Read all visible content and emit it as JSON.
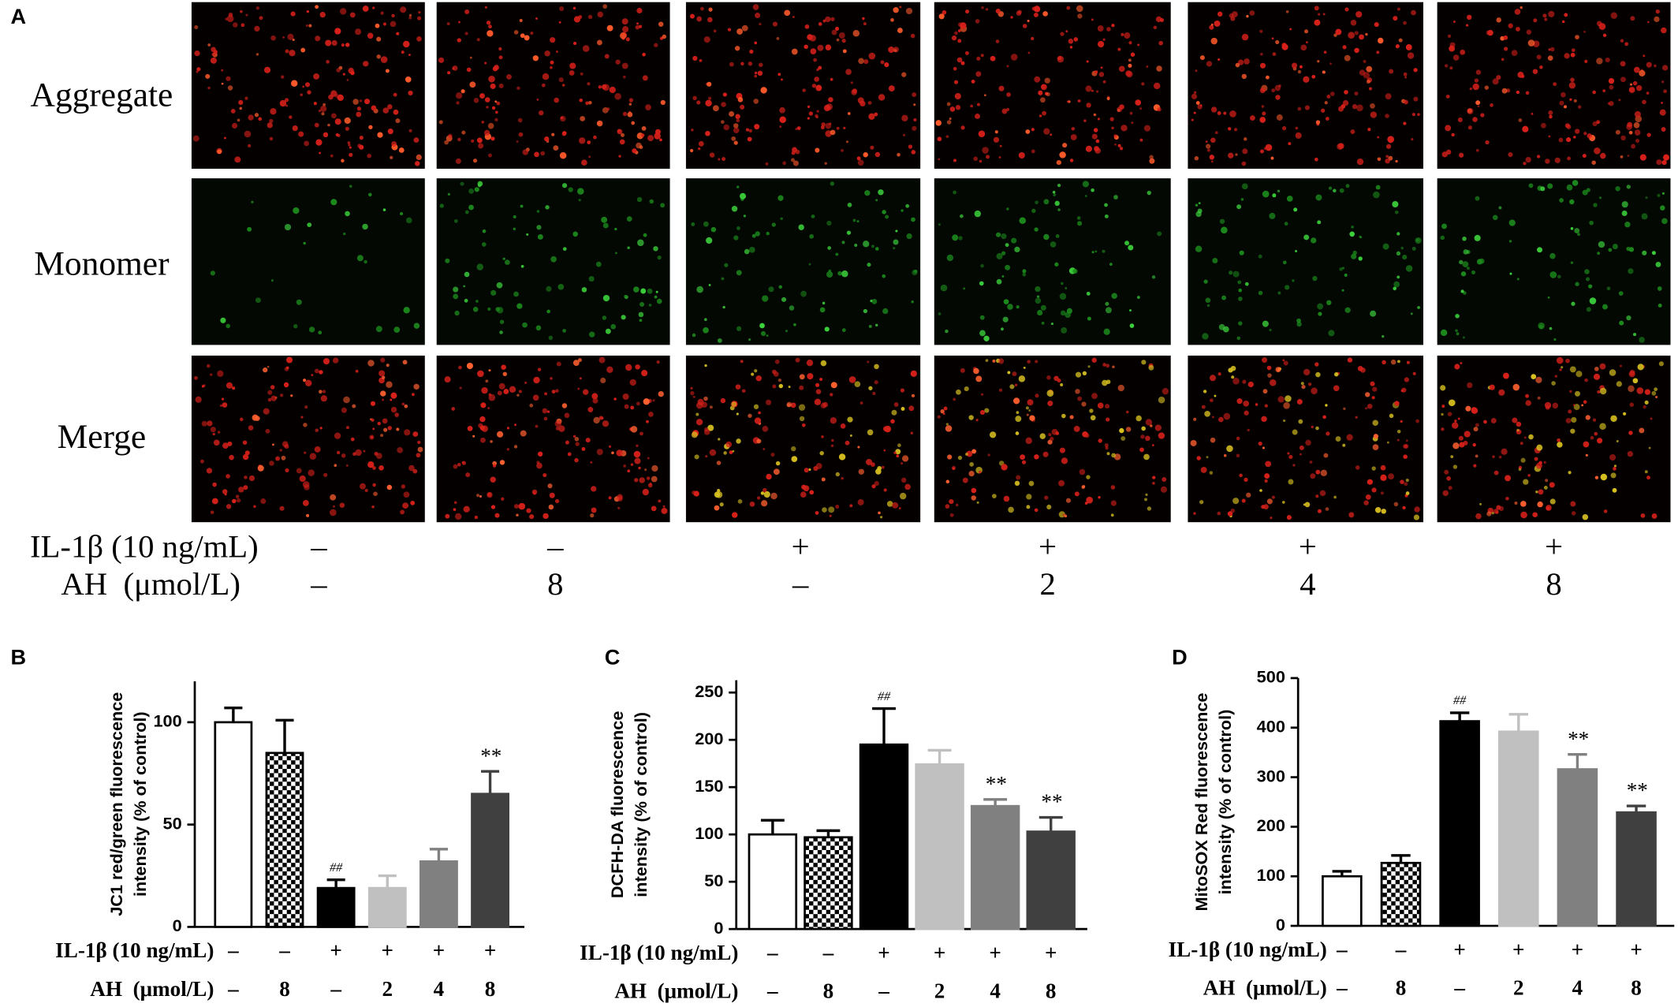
{
  "figure": {
    "panel_labels": [
      "A",
      "B",
      "C",
      "D"
    ],
    "panel_a": {
      "rows": [
        "Aggregate",
        "Monomer",
        "Merge"
      ],
      "conditions": [
        {
          "label": "IL-1β (10 ng/mL)",
          "values": [
            "–",
            "–",
            "+",
            "+",
            "+",
            "+"
          ]
        },
        {
          "label": "AH  (μmol/L)",
          "values": [
            "–",
            "8",
            "–",
            "2",
            "4",
            "8"
          ]
        }
      ]
    }
  },
  "chart_data": [
    {
      "type": "bar",
      "ylabel": [
        "JC1 red/green fluorescence",
        "intensity (% of control)"
      ],
      "conditions": [
        {
          "label": "IL-1β (10 ng/mL)",
          "values": [
            "–",
            "–",
            "+",
            "+",
            "+",
            "+"
          ]
        },
        {
          "label": "AH  (μmol/L)",
          "values": [
            "–",
            "8",
            "–",
            "2",
            "4",
            "8"
          ]
        }
      ],
      "values": [
        100,
        85,
        19,
        19,
        32,
        65
      ],
      "errors": [
        7,
        16,
        4,
        6,
        6,
        11
      ],
      "fills": [
        "#ffffff",
        "checkerboard",
        "#000000",
        "#c0c0c0",
        "#808080",
        "#404040"
      ],
      "annotations": [
        {
          "index": 2,
          "text": "##"
        },
        {
          "index": 5,
          "text": "**"
        }
      ],
      "ylim": [
        0,
        120
      ],
      "yticks": [
        0,
        50,
        100
      ]
    },
    {
      "type": "bar",
      "ylabel": [
        "DCFH-DA fluorescence",
        "intensity (% of control)"
      ],
      "conditions": [
        {
          "label": "IL-1β (10 ng/mL)",
          "values": [
            "–",
            "–",
            "+",
            "+",
            "+",
            "+"
          ]
        },
        {
          "label": "AH  (μmol/L)",
          "values": [
            "–",
            "8",
            "–",
            "2",
            "4",
            "8"
          ]
        }
      ],
      "values": [
        100,
        97,
        195,
        174,
        130,
        103
      ],
      "errors": [
        15,
        7,
        38,
        15,
        7,
        15
      ],
      "fills": [
        "#ffffff",
        "checkerboard",
        "#000000",
        "#c0c0c0",
        "#808080",
        "#404040"
      ],
      "annotations": [
        {
          "index": 2,
          "text": "##"
        },
        {
          "index": 4,
          "text": "**"
        },
        {
          "index": 5,
          "text": "**"
        }
      ],
      "ylim": [
        0,
        263
      ],
      "yticks": [
        0,
        50,
        100,
        150,
        200,
        250
      ]
    },
    {
      "type": "bar",
      "ylabel": [
        "MitoSOX Red fluorescence",
        "intensity (% of control)"
      ],
      "conditions": [
        {
          "label": "IL-1β (10 ng/mL)",
          "values": [
            "–",
            "–",
            "+",
            "+",
            "+",
            "+"
          ]
        },
        {
          "label": "AH  (μmol/L)",
          "values": [
            "–",
            "8",
            "–",
            "2",
            "4",
            "8"
          ]
        }
      ],
      "values": [
        100,
        127,
        413,
        392,
        316,
        229
      ],
      "errors": [
        10,
        15,
        17,
        35,
        30,
        13
      ],
      "fills": [
        "#ffffff",
        "checkerboard",
        "#000000",
        "#c0c0c0",
        "#808080",
        "#404040"
      ],
      "annotations": [
        {
          "index": 2,
          "text": "##"
        },
        {
          "index": 4,
          "text": "**"
        },
        {
          "index": 5,
          "text": "**"
        }
      ],
      "ylim": [
        0,
        500
      ],
      "yticks": [
        0,
        100,
        200,
        300,
        400,
        500
      ]
    }
  ]
}
